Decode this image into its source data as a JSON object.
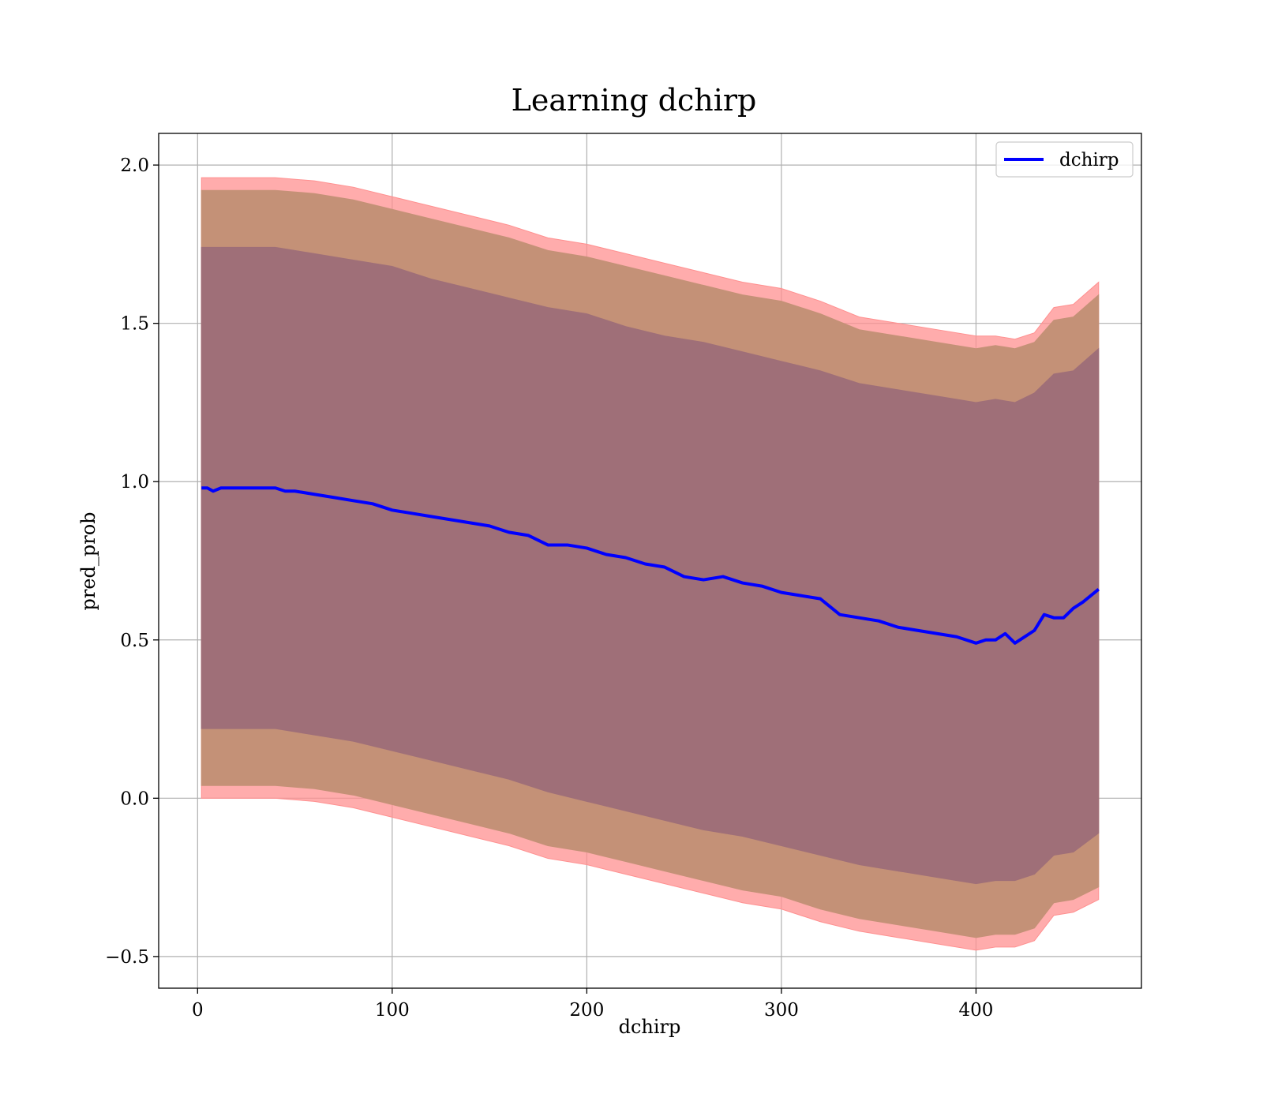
{
  "chart_data": {
    "type": "line",
    "title": "Learning dchirp",
    "xlabel": "dchirp",
    "ylabel": "pred_prob",
    "xlim": [
      -20,
      485
    ],
    "ylim": [
      -0.6,
      2.1
    ],
    "xticks": [
      0,
      100,
      200,
      300,
      400
    ],
    "xtick_labels": [
      "0",
      "100",
      "200",
      "300",
      "400"
    ],
    "yticks": [
      -0.5,
      0.0,
      0.5,
      1.0,
      1.5,
      2.0
    ],
    "ytick_labels": [
      "−0.5",
      "0.0",
      "0.5",
      "1.0",
      "1.5",
      "2.0"
    ],
    "grid": true,
    "legend_position": "top-right",
    "series": [
      {
        "name": "dchirp",
        "color": "#0000ff",
        "x": [
          2,
          5,
          8,
          12,
          16,
          20,
          25,
          30,
          35,
          40,
          45,
          50,
          60,
          70,
          80,
          90,
          100,
          110,
          120,
          130,
          140,
          150,
          160,
          170,
          180,
          190,
          200,
          210,
          220,
          230,
          240,
          250,
          260,
          270,
          280,
          290,
          300,
          310,
          320,
          330,
          340,
          350,
          360,
          370,
          380,
          390,
          400,
          405,
          410,
          415,
          420,
          425,
          430,
          435,
          440,
          445,
          450,
          455,
          463
        ],
        "y": [
          0.98,
          0.98,
          0.97,
          0.98,
          0.98,
          0.98,
          0.98,
          0.98,
          0.98,
          0.98,
          0.97,
          0.97,
          0.96,
          0.95,
          0.94,
          0.93,
          0.91,
          0.9,
          0.89,
          0.88,
          0.87,
          0.86,
          0.84,
          0.83,
          0.8,
          0.8,
          0.79,
          0.77,
          0.76,
          0.74,
          0.73,
          0.7,
          0.69,
          0.7,
          0.68,
          0.67,
          0.65,
          0.64,
          0.63,
          0.58,
          0.57,
          0.56,
          0.54,
          0.53,
          0.52,
          0.51,
          0.49,
          0.5,
          0.5,
          0.52,
          0.49,
          0.51,
          0.53,
          0.58,
          0.57,
          0.57,
          0.6,
          0.62,
          0.66
        ]
      }
    ],
    "bands": [
      {
        "color": "#ff9090",
        "opacity": 0.75,
        "x": [
          2,
          10,
          20,
          40,
          60,
          80,
          100,
          120,
          140,
          160,
          180,
          200,
          220,
          240,
          260,
          280,
          300,
          320,
          340,
          360,
          380,
          400,
          410,
          420,
          430,
          440,
          450,
          463
        ],
        "upper": [
          1.96,
          1.96,
          1.96,
          1.96,
          1.95,
          1.93,
          1.9,
          1.87,
          1.84,
          1.81,
          1.77,
          1.75,
          1.72,
          1.69,
          1.66,
          1.63,
          1.61,
          1.57,
          1.52,
          1.5,
          1.48,
          1.46,
          1.46,
          1.45,
          1.47,
          1.55,
          1.56,
          1.63
        ],
        "lower": [
          0.0,
          0.0,
          0.0,
          0.0,
          -0.01,
          -0.03,
          -0.06,
          -0.09,
          -0.12,
          -0.15,
          -0.19,
          -0.21,
          -0.24,
          -0.27,
          -0.3,
          -0.33,
          -0.35,
          -0.39,
          -0.42,
          -0.44,
          -0.46,
          -0.48,
          -0.47,
          -0.47,
          -0.45,
          -0.37,
          -0.36,
          -0.32
        ]
      },
      {
        "color": "#c49177",
        "opacity": 1,
        "x": [
          2,
          10,
          20,
          40,
          60,
          80,
          100,
          120,
          140,
          160,
          180,
          200,
          220,
          240,
          260,
          280,
          300,
          320,
          340,
          360,
          380,
          400,
          410,
          420,
          430,
          440,
          450,
          463
        ],
        "upper": [
          1.92,
          1.92,
          1.92,
          1.92,
          1.91,
          1.89,
          1.86,
          1.83,
          1.8,
          1.77,
          1.73,
          1.71,
          1.68,
          1.65,
          1.62,
          1.59,
          1.57,
          1.53,
          1.48,
          1.46,
          1.44,
          1.42,
          1.43,
          1.42,
          1.44,
          1.51,
          1.52,
          1.59
        ],
        "lower": [
          0.04,
          0.04,
          0.04,
          0.04,
          0.03,
          0.01,
          -0.02,
          -0.05,
          -0.08,
          -0.11,
          -0.15,
          -0.17,
          -0.2,
          -0.23,
          -0.26,
          -0.29,
          -0.31,
          -0.35,
          -0.38,
          -0.4,
          -0.42,
          -0.44,
          -0.43,
          -0.43,
          -0.41,
          -0.33,
          -0.32,
          -0.28
        ]
      },
      {
        "color": "#9f6f78",
        "opacity": 1,
        "x": [
          2,
          10,
          20,
          40,
          60,
          80,
          100,
          120,
          140,
          160,
          180,
          200,
          220,
          240,
          260,
          280,
          300,
          320,
          340,
          360,
          380,
          400,
          410,
          420,
          430,
          440,
          450,
          463
        ],
        "upper": [
          1.74,
          1.74,
          1.74,
          1.74,
          1.72,
          1.7,
          1.68,
          1.64,
          1.61,
          1.58,
          1.55,
          1.53,
          1.49,
          1.46,
          1.44,
          1.41,
          1.38,
          1.35,
          1.31,
          1.29,
          1.27,
          1.25,
          1.26,
          1.25,
          1.28,
          1.34,
          1.35,
          1.42
        ],
        "lower": [
          0.22,
          0.22,
          0.22,
          0.22,
          0.2,
          0.18,
          0.15,
          0.12,
          0.09,
          0.06,
          0.02,
          -0.01,
          -0.04,
          -0.07,
          -0.1,
          -0.12,
          -0.15,
          -0.18,
          -0.21,
          -0.23,
          -0.25,
          -0.27,
          -0.26,
          -0.26,
          -0.24,
          -0.18,
          -0.17,
          -0.11
        ]
      }
    ]
  }
}
